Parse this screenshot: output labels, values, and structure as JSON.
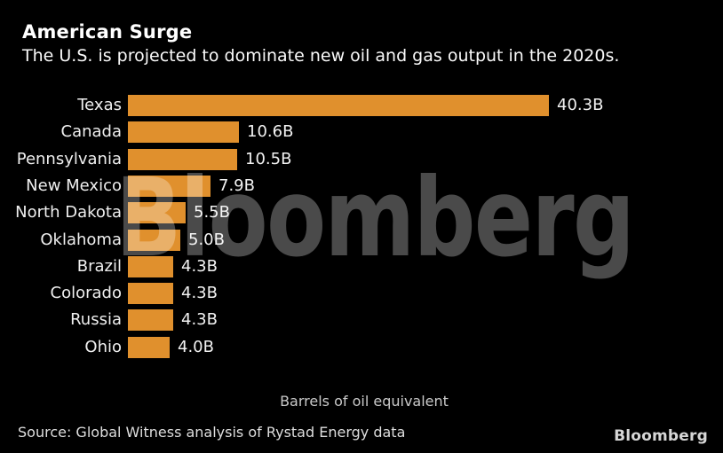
{
  "header": {
    "title": "American Surge",
    "subtitle": "The U.S. is projected to dominate new oil and gas output in the 2020s."
  },
  "chart_data": {
    "type": "bar",
    "orientation": "horizontal",
    "title": "American Surge",
    "subtitle": "The U.S. is projected to dominate new oil and gas output in the 2020s.",
    "categories": [
      "Texas",
      "Canada",
      "Pennsylvania",
      "New Mexico",
      "North Dakota",
      "Oklahoma",
      "Brazil",
      "Colorado",
      "Russia",
      "Ohio"
    ],
    "values": [
      40.3,
      10.6,
      10.5,
      7.9,
      5.5,
      5.0,
      4.3,
      4.3,
      4.3,
      4.0
    ],
    "value_labels": [
      "40.3B",
      "10.6B",
      "10.5B",
      "7.9B",
      "5.5B",
      "5.0B",
      "4.3B",
      "4.3B",
      "4.3B",
      "4.0B"
    ],
    "unit": "B",
    "xlabel": "Barrels of oil equivalent",
    "xlim": [
      0,
      40.3
    ],
    "grid": false,
    "legend": "none",
    "bar_color": "#e0902d",
    "background_color": "#000000"
  },
  "watermark": {
    "text": "Bloomberg",
    "base_color": "#ffffff",
    "opacity_on_black": "#4a4a4a"
  },
  "footer": {
    "source": "Source: Global Witness analysis of Rystad Energy data",
    "logo": "Bloomberg"
  }
}
